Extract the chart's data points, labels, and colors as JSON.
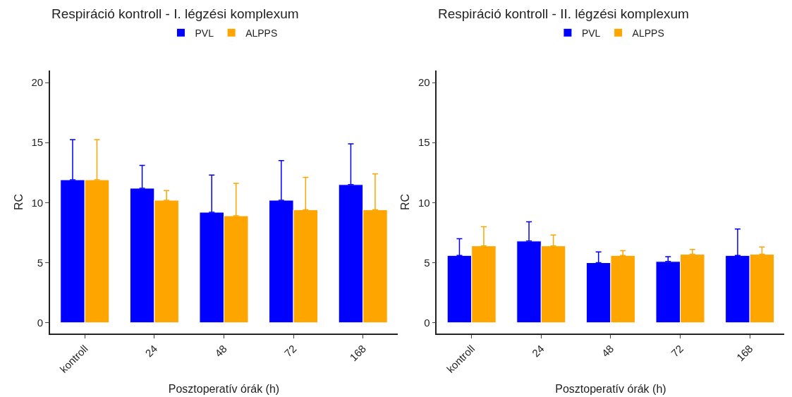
{
  "chart_data": [
    {
      "type": "bar",
      "title": "Respiráció kontroll - I. légzési komplexum",
      "xlabel": "Posztoperatív órák (h)",
      "ylabel": "RC",
      "categories": [
        "kontroll",
        "24",
        "48",
        "72",
        "168"
      ],
      "ylim": [
        -0.9,
        21
      ],
      "yticks": [
        0,
        5,
        10,
        15,
        20
      ],
      "legend": "top",
      "series": [
        {
          "name": "PVL",
          "color": "#0000ff",
          "values": [
            11.9,
            11.2,
            9.2,
            10.2,
            11.5
          ],
          "errors": [
            [
              11.9,
              15.25
            ],
            [
              11.2,
              13.1
            ],
            [
              9.2,
              12.3
            ],
            [
              10.2,
              13.5
            ],
            [
              11.5,
              14.9
            ]
          ]
        },
        {
          "name": "ALPPS",
          "color": "#ffa500",
          "values": [
            11.9,
            10.2,
            8.9,
            9.4,
            9.4
          ],
          "errors": [
            [
              11.9,
              15.25
            ],
            [
              10.2,
              11.0
            ],
            [
              8.9,
              11.6
            ],
            [
              9.4,
              12.1
            ],
            [
              9.4,
              12.4
            ]
          ]
        }
      ]
    },
    {
      "type": "bar",
      "title": "Respiráció kontroll - II. légzési komplexum",
      "xlabel": "Posztoperatív órák (h)",
      "ylabel": "RC",
      "categories": [
        "kontroll",
        "24",
        "48",
        "72",
        "168"
      ],
      "ylim": [
        -0.9,
        21
      ],
      "yticks": [
        0,
        5,
        10,
        15,
        20
      ],
      "legend": "top",
      "series": [
        {
          "name": "PVL",
          "color": "#0000ff",
          "values": [
            5.6,
            6.8,
            5.0,
            5.1,
            5.6
          ],
          "errors": [
            [
              5.6,
              7.0
            ],
            [
              6.8,
              8.4
            ],
            [
              5.0,
              5.9
            ],
            [
              5.1,
              5.5
            ],
            [
              5.6,
              7.8
            ]
          ]
        },
        {
          "name": "ALPPS",
          "color": "#ffa500",
          "values": [
            6.4,
            6.4,
            5.6,
            5.7,
            5.7
          ],
          "errors": [
            [
              6.4,
              8.0
            ],
            [
              6.4,
              7.3
            ],
            [
              5.6,
              6.0
            ],
            [
              5.7,
              6.1
            ],
            [
              5.7,
              6.3
            ]
          ]
        }
      ]
    }
  ]
}
